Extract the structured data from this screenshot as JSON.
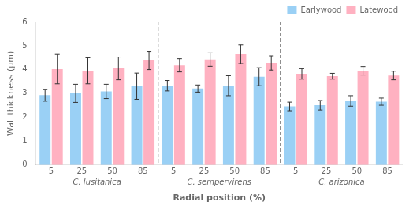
{
  "chart_data": {
    "type": "bar",
    "xlabel": "Radial position (%)",
    "ylabel": "Wall thickness (μm)",
    "categories": [
      "5",
      "25",
      "50",
      "85",
      "5",
      "25",
      "50",
      "85",
      "5",
      "25",
      "50",
      "85"
    ],
    "groups": [
      "C. lusitanica",
      "C. sempervirens",
      "C. arizonica"
    ],
    "series": [
      {
        "name": "Earlywood",
        "values": [
          2.92,
          3.0,
          3.08,
          3.3,
          3.32,
          3.2,
          3.32,
          3.7,
          2.45,
          2.5,
          2.68,
          2.65
        ],
        "errors": [
          0.25,
          0.38,
          0.3,
          0.55,
          0.22,
          0.15,
          0.42,
          0.38,
          0.18,
          0.2,
          0.22,
          0.15
        ]
      },
      {
        "name": "Latewood",
        "values": [
          4.02,
          3.95,
          4.05,
          4.38,
          4.18,
          4.42,
          4.65,
          4.28,
          3.82,
          3.72,
          3.95,
          3.75
        ],
        "errors": [
          0.62,
          0.55,
          0.48,
          0.38,
          0.28,
          0.28,
          0.4,
          0.3,
          0.22,
          0.12,
          0.18,
          0.18
        ]
      }
    ],
    "ylim": [
      0,
      6
    ],
    "yticks": [
      0,
      1,
      2,
      3,
      4,
      5,
      6
    ],
    "grid": false,
    "legend": "upper right"
  }
}
